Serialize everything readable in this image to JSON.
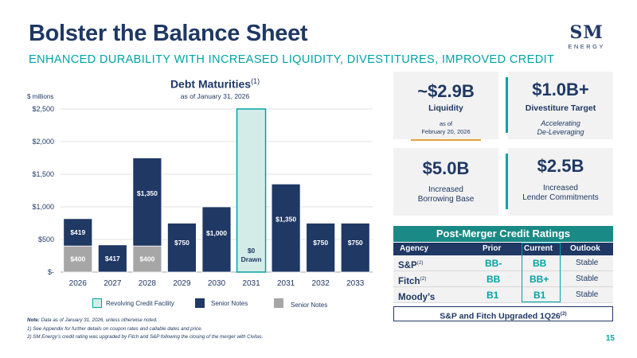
{
  "header": {
    "title": "Bolster the Balance Sheet",
    "subtitle": "ENHANCED DURABILITY WITH INCREASED LIQUIDITY, DIVESTITURES, IMPROVED CREDIT",
    "logo_main": "SM",
    "logo_sub": "ENERGY"
  },
  "chart_header": {
    "title": "Debt Maturities",
    "title_note": "(1)",
    "subtitle": "as of January 31, 2026",
    "units": "$ millions"
  },
  "chart_data": {
    "type": "bar",
    "stacked": true,
    "categories": [
      "2026",
      "2027",
      "2028",
      "2029",
      "2030",
      "2031",
      "2031",
      "2032",
      "2033"
    ],
    "ylim": [
      0,
      2500
    ],
    "yticks": [
      0,
      500,
      1000,
      1500,
      2000,
      2500
    ],
    "ytick_labels": [
      "$-",
      "$500",
      "$1,000",
      "$1,500",
      "$2,000",
      "$2,500"
    ],
    "grid": true,
    "series": [
      {
        "name": "Senior Notes",
        "color": "#a6a6a6",
        "values": [
          400,
          0,
          400,
          0,
          0,
          0,
          0,
          0,
          0
        ],
        "labels": [
          "$400",
          "",
          "$400",
          "",
          "",
          "",
          "",
          "",
          ""
        ]
      },
      {
        "name": "Senior Notes",
        "color": "#1f3864",
        "values": [
          419,
          417,
          1350,
          750,
          1000,
          0,
          1350,
          750,
          750
        ],
        "labels": [
          "$419",
          "$417",
          "$1,350",
          "$750",
          "$1,000",
          "",
          "$1,350",
          "$750",
          "$750"
        ]
      },
      {
        "name": "Revolving Credit Facility",
        "color": "#d4ece8",
        "values": [
          0,
          0,
          0,
          0,
          0,
          2500,
          0,
          0,
          0
        ],
        "labels": [
          "",
          "",
          "",
          "",
          "",
          "",
          "",
          "",
          ""
        ]
      }
    ],
    "revolver_note": [
      "$0",
      "Drawn"
    ],
    "legend": [
      {
        "label": "Revolving Credit Facility",
        "color": "#d4ece8",
        "border": "#00a3a6"
      },
      {
        "label": "Senior Notes",
        "color": "#1f3864",
        "border": "#1f3864"
      },
      {
        "label": "Senior Notes",
        "color": "#a6a6a6",
        "border": "#a6a6a6"
      }
    ],
    "legend_placement": "bottom"
  },
  "stats": {
    "liquidity": {
      "value": "~$2.9B",
      "label": "Liquidity",
      "note1": "as of",
      "note2": "February 20, 2026"
    },
    "divestiture": {
      "value": "$1.0B+",
      "label": "Divestiture Target",
      "note1": "Accelerating",
      "note2": "De-Leveraging"
    },
    "borrowing": {
      "value": "$5.0B",
      "label1": "Increased",
      "label2": "Borrowing Base"
    },
    "lender": {
      "value": "$2.5B",
      "label1": "Increased",
      "label2": "Lender Commitments"
    }
  },
  "ratings": {
    "title": "Post-Merger Credit Ratings",
    "columns": [
      "Agency",
      "Prior",
      "Current",
      "Outlook"
    ],
    "rows": [
      {
        "agency": "S&P",
        "note": "(2)",
        "prior": "BB-",
        "current": "BB",
        "outlook": "Stable"
      },
      {
        "agency": "Fitch",
        "note": "(2)",
        "prior": "BB",
        "current": "BB+",
        "outlook": "Stable"
      },
      {
        "agency": "Moody’s",
        "note": "",
        "prior": "B1",
        "current": "B1",
        "outlook": "Stable"
      }
    ],
    "upgrade_text": "S&P and Fitch Upgraded 1Q26",
    "upgrade_note": "(2)"
  },
  "notes": {
    "label": "Note:",
    "text0": "Data as of January 31, 2026, unless otherwise noted.",
    "line1": "1)    See Appendix for further details on coupon rates and callable dates and price.",
    "line2": "2)    SM Energy’s credit rating was upgraded by Fitch and S&P following the closing of the merger with Civitas."
  },
  "page_number": "15"
}
